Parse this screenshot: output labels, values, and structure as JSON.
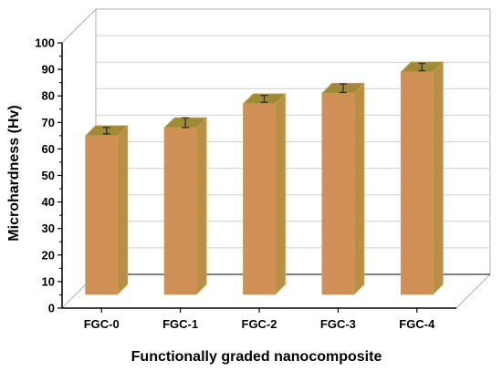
{
  "chart_data": {
    "type": "bar",
    "title": "",
    "xlabel": "Functionally graded nanocomposite",
    "ylabel": "Microhardness (Hv)",
    "categories": [
      "FGC-0",
      "FGC-1",
      "FGC-2",
      "FGC-3",
      "FGC-4"
    ],
    "values": [
      65,
      68,
      77,
      81,
      89
    ],
    "errors": [
      1.2,
      1.8,
      1.3,
      1.6,
      1.4
    ],
    "ylim": [
      0,
      100
    ],
    "yticks": [
      0,
      10,
      20,
      30,
      40,
      50,
      60,
      70,
      80,
      90,
      100
    ],
    "grid": true,
    "legend": "none",
    "style": "3d",
    "colors": {
      "bar_front": "#d08f55",
      "bar_side": "#b88f45",
      "bar_top": "#a08a35",
      "bar_edge": "#c8a050",
      "error_bar": "#333333",
      "frame": "#b0b0b0",
      "grid": "#cfcfcf"
    }
  }
}
